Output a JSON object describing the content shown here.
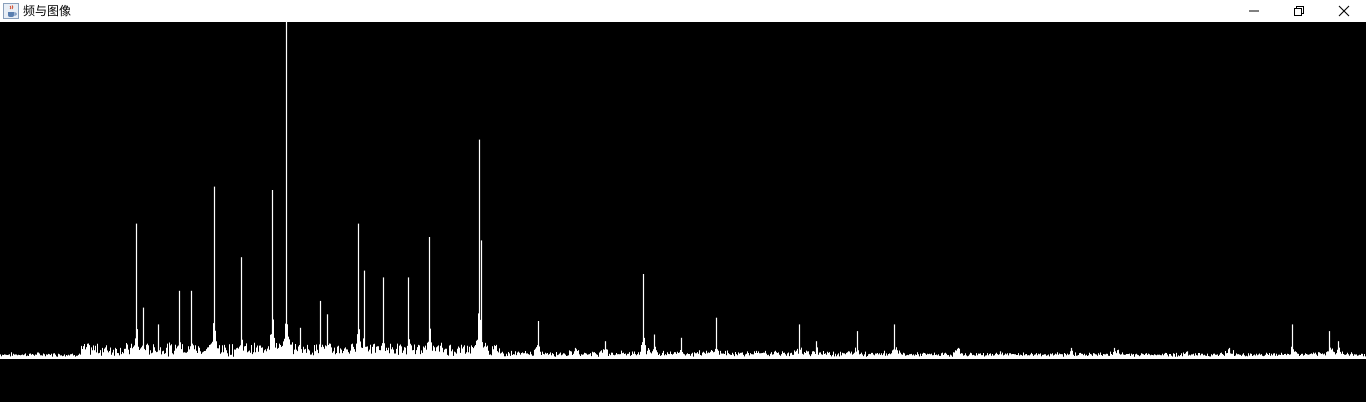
{
  "window": {
    "title": "频与图像",
    "icon": "java-cup-icon",
    "controls": [
      "minimize-icon",
      "restore-icon",
      "close-icon"
    ]
  },
  "colors": {
    "titlebar_bg": "#ffffff",
    "canvas_bg": "#000000",
    "spectrum": "#ffffff"
  },
  "chart_data": {
    "type": "bar",
    "title": "",
    "xlabel": "",
    "ylabel": "",
    "grid": false,
    "x": [
      136,
      143,
      158,
      179,
      191,
      214,
      241,
      272,
      286,
      300,
      320,
      327,
      358,
      364,
      383,
      408,
      429,
      479,
      481,
      538,
      575,
      605,
      643,
      654,
      681,
      716,
      799,
      816,
      857,
      894,
      958,
      1000,
      1071,
      1114,
      1187,
      1229,
      1292,
      1329,
      1338
    ],
    "values": [
      0.4,
      0.15,
      0.1,
      0.2,
      0.2,
      0.51,
      0.3,
      0.5,
      1.0,
      0.09,
      0.17,
      0.13,
      0.4,
      0.26,
      0.24,
      0.24,
      0.36,
      0.65,
      0.35,
      0.11,
      0.03,
      0.05,
      0.25,
      0.07,
      0.06,
      0.12,
      0.1,
      0.05,
      0.08,
      0.1,
      0.03,
      0.02,
      0.03,
      0.03,
      0.02,
      0.03,
      0.1,
      0.08,
      0.05
    ],
    "xlim": [
      0,
      1366
    ],
    "ylim": [
      0,
      1
    ]
  }
}
